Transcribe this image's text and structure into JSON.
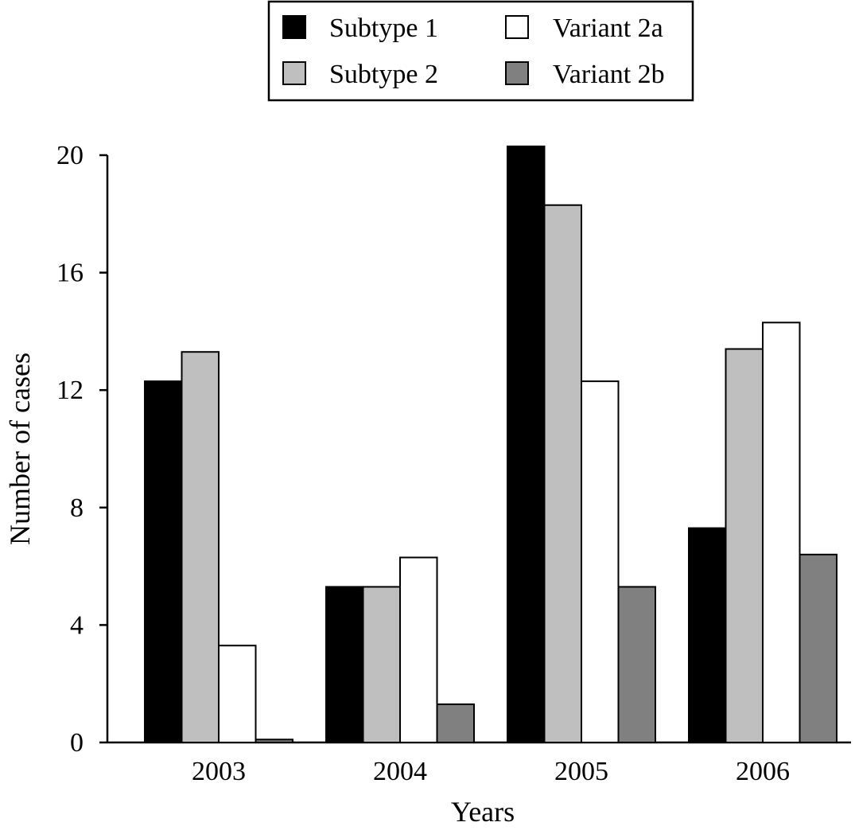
{
  "chart_data": {
    "type": "bar",
    "title": "",
    "xlabel": "Years",
    "ylabel": "Number of cases",
    "categories": [
      "2003",
      "2004",
      "2005",
      "2006"
    ],
    "ylim": [
      0,
      20
    ],
    "yticks": [
      "0",
      "4",
      "8",
      "12",
      "16",
      "20"
    ],
    "grid": false,
    "legend_position": "top-center",
    "series": [
      {
        "name": "Subtype 1",
        "color": "#000000",
        "values": [
          12.3,
          5.3,
          20.3,
          7.3
        ]
      },
      {
        "name": "Subtype 2",
        "color": "#bfbfbf",
        "values": [
          13.3,
          5.3,
          18.3,
          13.4
        ]
      },
      {
        "name": "Variant 2a",
        "color": "#ffffff",
        "values": [
          3.3,
          6.3,
          12.3,
          14.3
        ]
      },
      {
        "name": "Variant 2b",
        "color": "#808080",
        "values": [
          0.1,
          1.3,
          5.3,
          6.4
        ]
      }
    ]
  }
}
